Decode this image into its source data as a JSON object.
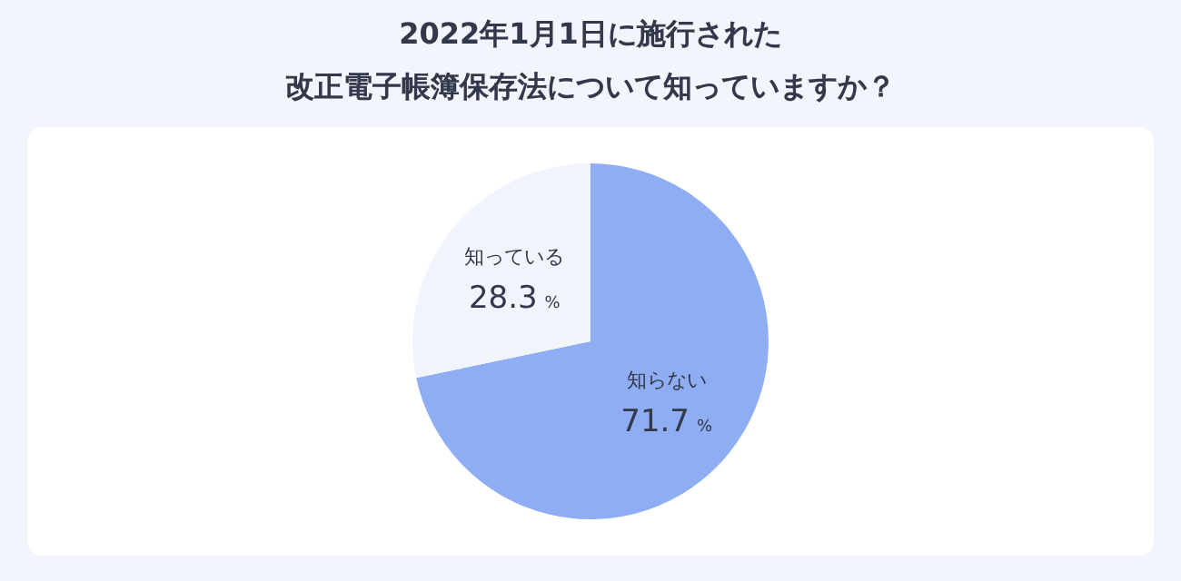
{
  "chart_data": {
    "type": "pie",
    "title": "2022年1月1日に施行された",
    "subtitle": "改正電子帳簿保存法について知っていますか？",
    "categories": [
      "知らない",
      "知っている"
    ],
    "values": [
      71.7,
      28.3
    ],
    "colors": [
      "#8fadf2",
      "#f1f4fd"
    ],
    "value_labels": [
      "71.7 %",
      "28.3 %"
    ],
    "legend": false
  }
}
